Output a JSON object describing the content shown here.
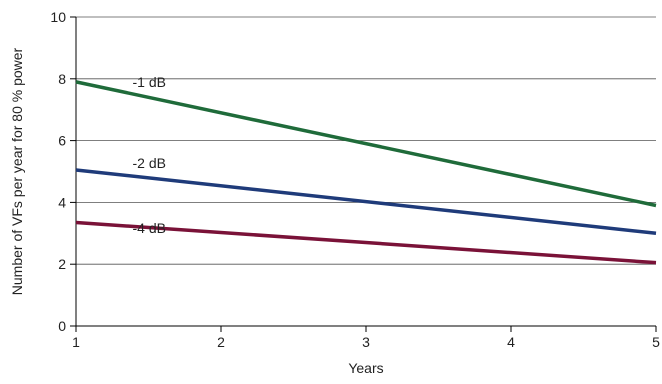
{
  "chart_data": {
    "type": "line",
    "title": "",
    "xlabel": "Years",
    "ylabel": "Number of VFs per year for 80 % power",
    "xlim": [
      1,
      5
    ],
    "ylim": [
      0,
      10
    ],
    "xticks": [
      1,
      2,
      3,
      4,
      5
    ],
    "yticks": [
      0,
      2,
      4,
      6,
      8,
      10
    ],
    "grid": "horizontal",
    "legend": "inline labels",
    "series": [
      {
        "name": "-1 dB",
        "color": "#1f6b3a",
        "x": [
          1,
          5
        ],
        "y": [
          7.9,
          3.9
        ]
      },
      {
        "name": "-2 dB",
        "color": "#1f3b7a",
        "x": [
          1,
          5
        ],
        "y": [
          5.05,
          3.0
        ]
      },
      {
        "name": "-4 dB",
        "color": "#7a1238",
        "x": [
          1,
          5
        ],
        "y": [
          3.35,
          2.05
        ]
      }
    ]
  }
}
